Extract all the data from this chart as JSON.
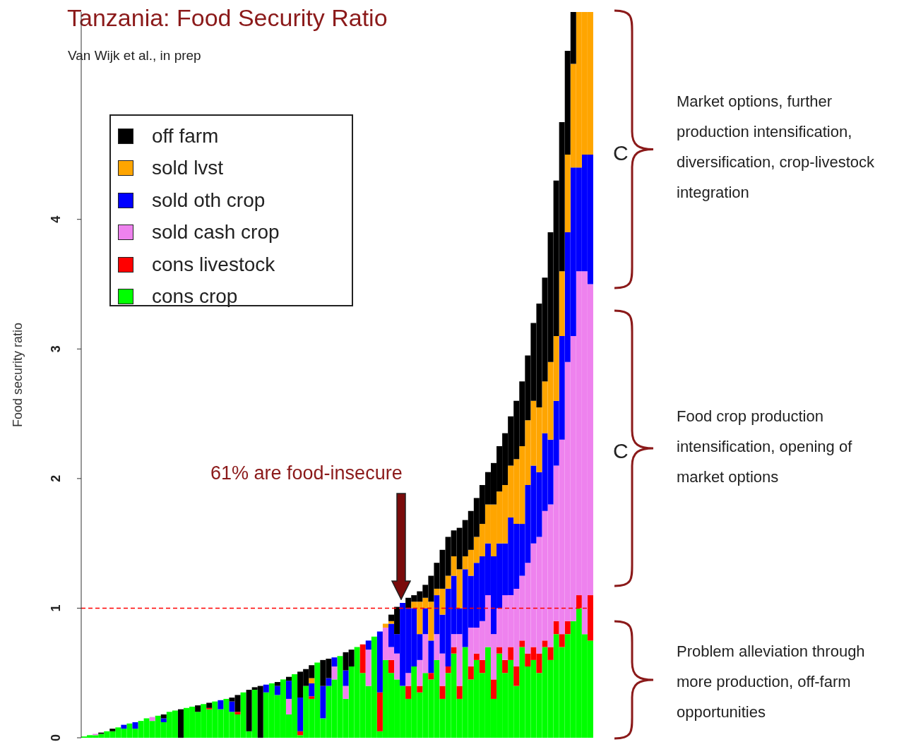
{
  "chart_data": {
    "type": "bar",
    "title": "Tanzania: Food Security Ratio",
    "subtitle": "Van Wijk et al., in prep",
    "ylabel": "Food security ratio",
    "stacked": true,
    "legend": "top left",
    "categories": [
      null,
      null,
      null,
      null,
      null,
      null,
      null,
      null,
      null,
      null,
      null,
      null,
      null,
      null,
      null,
      null,
      null,
      null,
      null,
      null,
      null,
      null,
      null,
      null,
      null,
      null,
      null,
      null,
      null,
      null,
      null,
      null,
      null,
      null,
      null,
      null,
      null,
      null,
      null,
      null,
      null,
      null,
      null,
      null,
      null,
      null,
      null,
      null,
      null,
      null,
      null,
      null,
      null,
      null,
      null,
      null,
      null,
      null,
      null,
      null,
      null,
      null,
      null,
      null,
      null,
      null,
      null,
      null,
      null,
      null,
      null,
      null,
      null,
      null,
      null,
      null,
      null,
      null,
      null,
      null,
      null,
      null,
      null,
      null,
      null,
      null,
      null,
      null,
      null,
      null
    ],
    "series": [
      {
        "name": "cons crop",
        "color": "#00ff00",
        "values": [
          0.01,
          0.02,
          0.02,
          0.03,
          0.05,
          0.05,
          0.08,
          0.07,
          0.11,
          0.07,
          0.13,
          0.15,
          0.13,
          0.17,
          0.12,
          0.2,
          0.21,
          null,
          0.23,
          0.24,
          0.2,
          0.26,
          0.22,
          0.28,
          0.22,
          0.3,
          0.2,
          0.18,
          0.35,
          0.05,
          0.37,
          null,
          0.35,
          0.42,
          0.33,
          0.45,
          0.18,
          0.49,
          0.02,
          0.4,
          0.3,
          0.58,
          0.15,
          0.4,
          0.45,
          0.63,
          0.3,
          0.55,
          0.7,
          0.5,
          0.4,
          0.78,
          0.05,
          0.6,
          0.5,
          0.45,
          0.4,
          0.3,
          0.55,
          0.35,
          0.5,
          0.45,
          0.6,
          0.3,
          0.5,
          0.65,
          0.3,
          0.7,
          0.45,
          0.6,
          0.5,
          0.7,
          0.3,
          0.65,
          0.5,
          0.6,
          0.4,
          0.7,
          0.55,
          0.6,
          0.5,
          0.7,
          0.6,
          0.8,
          0.7,
          0.8,
          0.9,
          1.0,
          0.8,
          0.75
        ]
      },
      {
        "name": "cons livestock",
        "color": "#ff0000",
        "values": [
          null,
          null,
          null,
          null,
          null,
          null,
          null,
          null,
          null,
          null,
          null,
          null,
          null,
          null,
          null,
          null,
          null,
          null,
          null,
          null,
          null,
          null,
          0.01,
          null,
          null,
          null,
          null,
          0.02,
          null,
          null,
          null,
          null,
          null,
          null,
          null,
          null,
          null,
          null,
          0.03,
          null,
          0.02,
          null,
          null,
          null,
          null,
          null,
          null,
          null,
          null,
          0.22,
          null,
          null,
          0.3,
          null,
          0.1,
          null,
          null,
          0.1,
          null,
          0.05,
          null,
          0.05,
          null,
          0.1,
          0.05,
          0.05,
          0.1,
          null,
          0.1,
          0.05,
          0.1,
          null,
          0.15,
          0.05,
          0.1,
          0.1,
          0.15,
          0.05,
          0.1,
          0.1,
          0.15,
          0.05,
          0.1,
          0.1,
          0.1,
          0.1,
          null,
          0.1,
          null,
          0.35
        ]
      },
      {
        "name": "sold cash crop",
        "color": "#ee82ee",
        "values": [
          null,
          null,
          0.01,
          null,
          null,
          null,
          null,
          null,
          null,
          null,
          null,
          null,
          0.03,
          null,
          null,
          null,
          null,
          null,
          null,
          null,
          null,
          null,
          null,
          null,
          null,
          null,
          null,
          null,
          null,
          null,
          null,
          null,
          null,
          null,
          null,
          null,
          0.12,
          null,
          null,
          null,
          null,
          null,
          null,
          null,
          0.1,
          null,
          0.1,
          null,
          null,
          null,
          0.28,
          null,
          null,
          0.25,
          0.1,
          0.2,
          null,
          0.1,
          null,
          0.2,
          0.3,
          null,
          0.2,
          0.25,
          null,
          0.1,
          0.4,
          null,
          0.3,
          0.2,
          0.3,
          0.4,
          0.35,
          0.3,
          0.5,
          0.4,
          0.6,
          0.5,
          0.7,
          0.8,
          0.9,
          1.0,
          1.1,
          1.2,
          1.5,
          2.0,
          2.2,
          2.5,
          2.8,
          2.4
        ]
      },
      {
        "name": "sold oth crop",
        "color": "#0000ff",
        "values": [
          null,
          null,
          null,
          null,
          null,
          null,
          null,
          0.03,
          null,
          0.05,
          null,
          null,
          null,
          null,
          0.03,
          null,
          null,
          null,
          null,
          null,
          null,
          null,
          null,
          null,
          0.07,
          null,
          0.08,
          null,
          null,
          null,
          null,
          null,
          0.06,
          null,
          0.07,
          null,
          0.14,
          null,
          0.26,
          null,
          0.1,
          null,
          0.25,
          0.06,
          0.07,
          null,
          0.12,
          null,
          null,
          null,
          0.07,
          null,
          0.47,
          null,
          0.18,
          0.15,
          0.64,
          0.5,
          0.45,
          0.2,
          0.2,
          0.25,
          0.3,
          0.3,
          0.6,
          0.45,
          0.2,
          0.6,
          0.4,
          0.5,
          0.5,
          0.4,
          0.6,
          0.5,
          0.4,
          0.6,
          0.5,
          0.4,
          0.6,
          0.6,
          0.5,
          0.6,
          0.5,
          0.5,
          0.8,
          1.0,
          1.3,
          0.8,
          0.9,
          1.0
        ]
      },
      {
        "name": "sold lvst",
        "color": "#ffa500",
        "values": [
          null,
          null,
          null,
          null,
          null,
          null,
          null,
          null,
          null,
          null,
          null,
          null,
          null,
          null,
          null,
          null,
          null,
          null,
          null,
          null,
          null,
          null,
          null,
          null,
          null,
          null,
          null,
          null,
          null,
          null,
          null,
          null,
          null,
          null,
          null,
          null,
          null,
          null,
          null,
          null,
          0.04,
          null,
          null,
          null,
          null,
          null,
          null,
          null,
          null,
          null,
          null,
          null,
          null,
          0.03,
          0.02,
          null,
          null,
          null,
          0.05,
          0.25,
          0.08,
          0.3,
          0.05,
          0.2,
          0.1,
          0.15,
          0.3,
          0.1,
          0.2,
          0.2,
          0.25,
          0.3,
          0.4,
          0.4,
          0.45,
          0.4,
          0.5,
          0.6,
          0.5,
          0.5,
          0.5,
          0.4,
          0.6,
          0.5,
          0.5,
          0.6,
          0.8,
          1.2,
          1.1,
          1.1
        ]
      },
      {
        "name": "off farm",
        "color": "#000000",
        "values": [
          null,
          null,
          null,
          0.01,
          null,
          0.02,
          null,
          null,
          null,
          null,
          null,
          null,
          null,
          null,
          0.03,
          null,
          null,
          0.22,
          null,
          null,
          0.05,
          null,
          0.04,
          null,
          null,
          null,
          0.03,
          0.13,
          null,
          0.32,
          0.02,
          0.4,
          null,
          null,
          0.03,
          null,
          0.03,
          null,
          0.2,
          0.13,
          0.1,
          null,
          0.2,
          0.15,
          null,
          null,
          0.14,
          0.13,
          null,
          null,
          null,
          null,
          null,
          null,
          0.05,
          0.21,
          null,
          0.08,
          0.05,
          0.08,
          0.1,
          0.2,
          0.2,
          0.3,
          0.3,
          0.2,
          0.32,
          0.28,
          0.3,
          0.3,
          0.3,
          0.25,
          0.32,
          0.35,
          0.4,
          0.38,
          0.45,
          0.5,
          0.5,
          0.6,
          0.8,
          0.8,
          1.0,
          1.2,
          1.15,
          0.8,
          0.4,
          null,
          null,
          null
        ]
      }
    ],
    "ylim": [
      0,
      5.6
    ],
    "yticks": [
      0,
      1,
      2,
      3,
      4
    ],
    "ref_lines": [
      {
        "axis": "y",
        "value": 1,
        "color": "#ff0000",
        "line_style": "dashed"
      }
    ],
    "annotations": [
      "61% are food-insecure",
      "C",
      "C",
      "Market options, further production intensification, diversification, crop-livestock integration",
      "Food crop production intensification, opening of market options",
      "Problem alleviation through more production, off-farm opportunities"
    ]
  }
}
